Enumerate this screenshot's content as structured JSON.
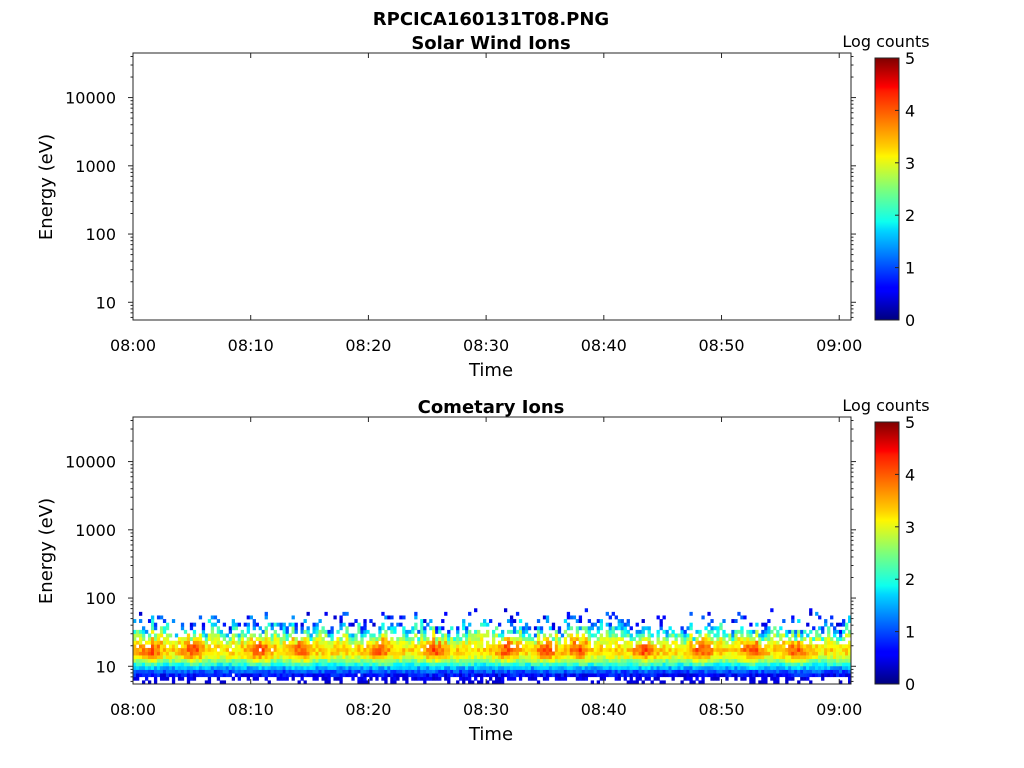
{
  "figure_title": "RPCICA160131T08.PNG",
  "chart_data": [
    {
      "type": "heatmap",
      "title": "Solar Wind Ions",
      "xlabel": "Time",
      "ylabel": "Energy (eV)",
      "x_ticks": [
        "08:00",
        "08:10",
        "08:20",
        "08:30",
        "08:40",
        "08:50",
        "09:00"
      ],
      "x_range_minutes": [
        0,
        61
      ],
      "y_scale": "log",
      "y_ticks": [
        10,
        100,
        1000,
        10000
      ],
      "y_tick_labels": [
        "10",
        "100",
        "1000",
        "10000"
      ],
      "y_range": [
        5.5,
        45000
      ],
      "colorbar": {
        "label": "Log counts",
        "range": [
          0,
          5
        ],
        "ticks": [
          "0",
          "1",
          "2",
          "3",
          "4",
          "5"
        ],
        "colormap": "jet"
      },
      "data_present": false,
      "band": null
    },
    {
      "type": "heatmap",
      "title": "Cometary Ions",
      "xlabel": "Time",
      "ylabel": "Energy (eV)",
      "x_ticks": [
        "08:00",
        "08:10",
        "08:20",
        "08:30",
        "08:40",
        "08:50",
        "09:00"
      ],
      "x_range_minutes": [
        0,
        61
      ],
      "y_scale": "log",
      "y_ticks": [
        10,
        100,
        1000,
        10000
      ],
      "y_tick_labels": [
        "10",
        "100",
        "1000",
        "10000"
      ],
      "y_range": [
        5.5,
        45000
      ],
      "colorbar": {
        "label": "Log counts",
        "range": [
          0,
          5
        ],
        "ticks": [
          "0",
          "1",
          "2",
          "3",
          "4",
          "5"
        ],
        "colormap": "jet"
      },
      "data_present": true,
      "band": {
        "energy_min_ev": 5.5,
        "energy_max_ev": 80,
        "peak_energy_ev": 17,
        "peak_log_counts": 3.3,
        "max_log_counts": 4.0,
        "bright_burst_minutes": [
          1.5,
          5.2,
          10.8,
          14.3,
          21.0,
          25.7,
          31.8,
          35.2,
          37.8,
          43.5,
          48.3,
          52.6,
          56.3
        ]
      }
    }
  ]
}
